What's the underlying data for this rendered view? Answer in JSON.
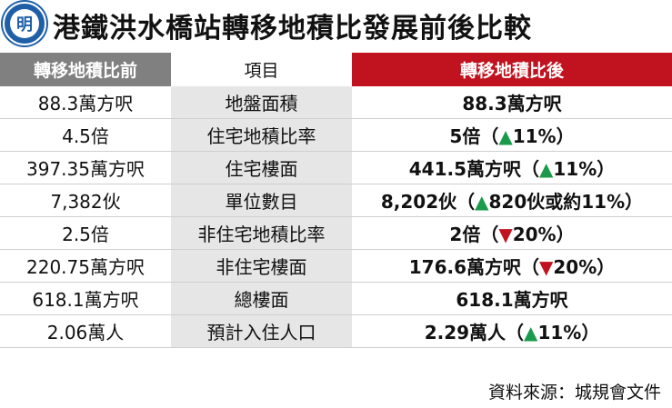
{
  "logo_char": "明",
  "title": "港鐵洪水橋站轉移地積比發展前後比較",
  "headers": {
    "before": "轉移地積比前",
    "item": "項目",
    "after": "轉移地積比後"
  },
  "rows": [
    {
      "before": "88.3萬方呎",
      "item": "地盤面積",
      "after": "88.3萬方呎",
      "arrow": "",
      "change": "",
      "close": ""
    },
    {
      "before": "4.5倍",
      "item": "住宅地積比率",
      "after": "5倍（",
      "arrow": "▲",
      "change": "11%",
      "close": "）"
    },
    {
      "before": "397.35萬方呎",
      "item": "住宅樓面",
      "after": "441.5萬方呎（",
      "arrow": "▲",
      "change": "11%",
      "close": "）"
    },
    {
      "before": "7,382伙",
      "item": "單位數目",
      "after": "8,202伙（",
      "arrow": "▲",
      "change": "820伙或約11%",
      "close": "）"
    },
    {
      "before": "2.5倍",
      "item": "非住宅地積比率",
      "after": "2倍（",
      "arrow": "▼",
      "change": "20%",
      "close": "）"
    },
    {
      "before": "220.75萬方呎",
      "item": "非住宅樓面",
      "after": "176.6萬方呎（",
      "arrow": "▼",
      "change": "20%",
      "close": "）"
    },
    {
      "before": "618.1萬方呎",
      "item": "總樓面",
      "after": "618.1萬方呎",
      "arrow": "",
      "change": "",
      "close": ""
    },
    {
      "before": "2.06萬人",
      "item": "預計入住人口",
      "after": "2.29萬人（",
      "arrow": "▲",
      "change": "11%",
      "close": "）"
    }
  ],
  "source": "資料來源：城規會文件",
  "colors": {
    "header_before": "#808080",
    "header_after": "#c1121f",
    "up_arrow": "#1a9a4a",
    "down_arrow": "#c1121f",
    "logo": "#1f5fa8"
  }
}
